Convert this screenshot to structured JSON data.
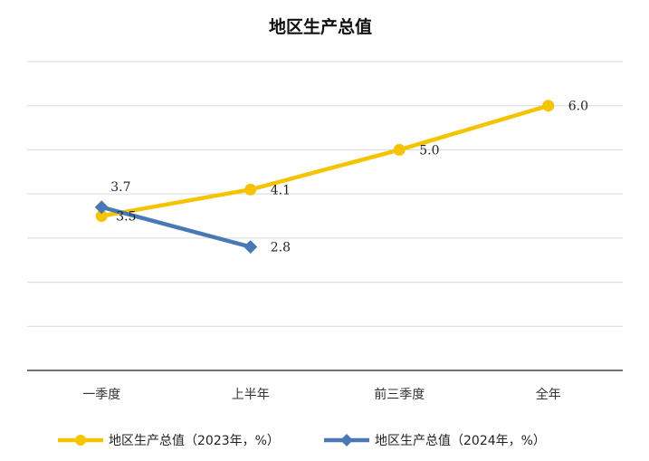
{
  "chart_data": {
    "type": "line",
    "title": "地区生产总值",
    "categories": [
      "一季度",
      "上半年",
      "前三季度",
      "全年"
    ],
    "series": [
      {
        "name": "地区生产总值（2023年，%）",
        "values": [
          3.5,
          4.1,
          5.0,
          6.0
        ],
        "labels": [
          "3.5",
          "4.1",
          "5.0",
          "6.0"
        ],
        "color": "#F5C400",
        "marker": "circle"
      },
      {
        "name": "地区生产总值（2024年，%）",
        "values": [
          3.7,
          2.8,
          null,
          null
        ],
        "labels": [
          "3.7",
          "2.8",
          "",
          ""
        ],
        "color": "#4A78B5",
        "marker": "diamond"
      }
    ],
    "ylim": [
      0,
      7
    ],
    "y_axis_labels_visible": false,
    "grid": true,
    "legend_position": "bottom"
  }
}
